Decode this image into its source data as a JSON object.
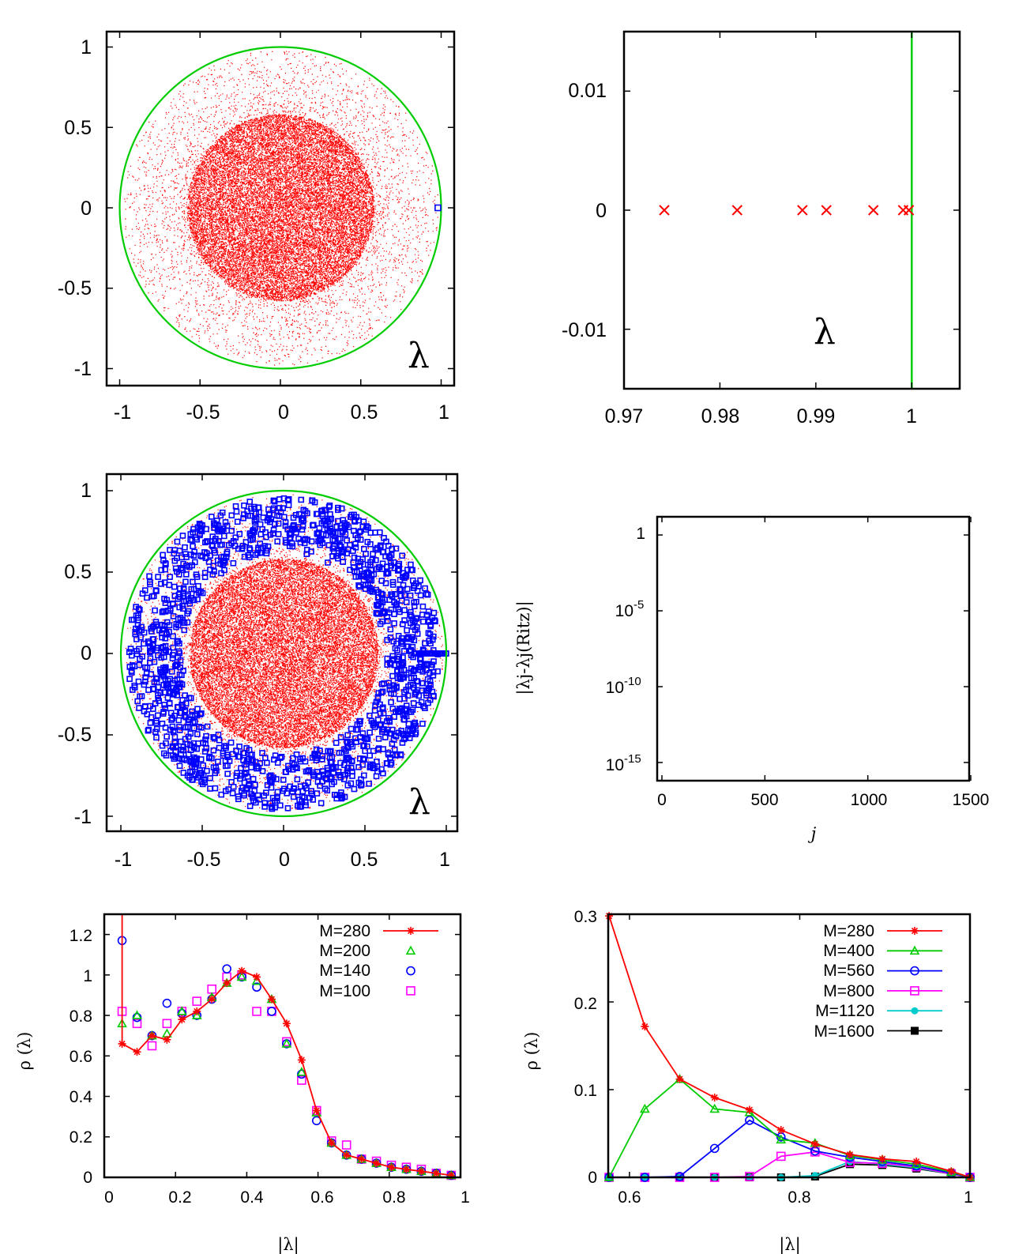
{
  "chart_data": [
    {
      "id": "p1",
      "type": "scatter",
      "annotation": "λ",
      "xlim": [
        -1.1,
        1.1
      ],
      "ylim": [
        -1.1,
        1.1
      ],
      "xticks": [
        "-1",
        "-0.5",
        "0",
        "0.5",
        "1"
      ],
      "yticks": [
        "1",
        "0.5",
        "0",
        "-0.5",
        "-1"
      ],
      "unit_circle_color": "#00cc00",
      "points_color": "#ff0000",
      "highlight_point": {
        "x": 0.97,
        "y": 0.0,
        "color": "#0000ff"
      }
    },
    {
      "id": "p2",
      "type": "scatter",
      "annotation": "λ",
      "xlim": [
        0.97,
        1.005
      ],
      "ylim": [
        -0.015,
        0.015
      ],
      "xticks": [
        "0.97",
        "0.98",
        "0.99",
        "1"
      ],
      "yticks": [
        "0.01",
        "0",
        "-0.01"
      ],
      "x": [
        0.9742,
        0.9818,
        0.9886,
        0.9911,
        0.996,
        0.9991,
        0.9997
      ],
      "y": [
        0,
        0,
        0,
        0,
        0,
        0,
        0
      ],
      "marker": "x",
      "color": "#ff0000",
      "vline": {
        "x": 1.0,
        "color": "#00cc00"
      }
    },
    {
      "id": "p3",
      "type": "scatter",
      "annotation": "λ",
      "xlim": [
        -1.1,
        1.1
      ],
      "ylim": [
        -1.1,
        1.1
      ],
      "xticks": [
        "-1",
        "-0.5",
        "0",
        "0.5",
        "1"
      ],
      "yticks": [
        "1",
        "0.5",
        "0",
        "-0.5",
        "-1"
      ],
      "unit_circle_color": "#00cc00",
      "points_color": "#ff0000",
      "ritz_color": "#0000ff"
    },
    {
      "id": "p4",
      "type": "scatter",
      "xlabel": "j",
      "ylabel": "|λj-λj(Ritz)|",
      "xlim": [
        0,
        1500
      ],
      "ylog": true,
      "ylim_exp": [
        -16.2,
        1.2
      ],
      "xticks": [
        "0",
        "500",
        "1000",
        "1500"
      ],
      "yticks": [
        {
          "base": "1",
          "exp": ""
        },
        {
          "base": "10",
          "exp": "-5"
        },
        {
          "base": "10",
          "exp": "-10"
        },
        {
          "base": "10",
          "exp": "-15"
        }
      ],
      "marker": "+",
      "color": "#ff0000"
    },
    {
      "id": "p5",
      "type": "line",
      "xlabel": "|λ|",
      "ylabel": "ρ (λ)",
      "xlim": [
        0,
        1
      ],
      "ylim": [
        0,
        1.3
      ],
      "xticks": [
        "0",
        "0.2",
        "0.4",
        "0.6",
        "0.8",
        "1"
      ],
      "yticks": [
        "0",
        "0.2",
        "0.4",
        "0.6",
        "0.8",
        "1",
        "1.2"
      ],
      "legend_position": "top-right",
      "x": [
        0.05,
        0.092,
        0.134,
        0.176,
        0.218,
        0.26,
        0.302,
        0.344,
        0.386,
        0.428,
        0.47,
        0.512,
        0.554,
        0.596,
        0.638,
        0.68,
        0.722,
        0.764,
        0.806,
        0.848,
        0.89,
        0.932,
        0.974
      ],
      "series": [
        {
          "name": "M=280",
          "color": "#ff0000",
          "marker": "star",
          "line": true,
          "values": [
            0.66,
            0.62,
            0.7,
            0.68,
            0.78,
            0.82,
            0.88,
            0.96,
            1.02,
            0.99,
            0.88,
            0.76,
            0.58,
            0.33,
            0.17,
            0.11,
            0.09,
            0.07,
            0.05,
            0.04,
            0.03,
            0.02,
            0.01
          ]
        },
        {
          "name": "M=200",
          "color": "#00cc00",
          "marker": "triangle",
          "line": false,
          "values": [
            0.76,
            0.8,
            0.7,
            0.71,
            0.82,
            0.8,
            0.89,
            0.96,
            0.99,
            0.97,
            0.88,
            0.66,
            0.52,
            0.32,
            0.17,
            0.11,
            0.09,
            0.07,
            0.05,
            0.04,
            0.03,
            0.02,
            0.01
          ]
        },
        {
          "name": "M=140",
          "color": "#0000ff",
          "marker": "circle",
          "line": false,
          "values": [
            1.17,
            0.79,
            0.7,
            0.86,
            0.81,
            0.8,
            0.88,
            1.03,
            0.99,
            0.94,
            0.82,
            0.66,
            0.51,
            0.28,
            0.17,
            0.11,
            0.09,
            0.07,
            0.05,
            0.04,
            0.03,
            0.02,
            0.01
          ]
        },
        {
          "name": "M=100",
          "color": "#ff00ff",
          "marker": "square",
          "line": false,
          "values": [
            0.82,
            0.76,
            0.65,
            0.76,
            0.82,
            0.87,
            0.93,
            0.99,
            1.0,
            0.82,
            0.82,
            0.67,
            0.48,
            0.33,
            0.18,
            0.16,
            0.09,
            0.08,
            0.06,
            0.05,
            0.04,
            0.02,
            0.01
          ]
        }
      ]
    },
    {
      "id": "p6",
      "type": "line",
      "xlabel": "|λ|",
      "ylabel": "ρ (λ)",
      "xlim": [
        0.575,
        1.0
      ],
      "ylim": [
        0,
        0.3
      ],
      "xticks": [
        "0.6",
        "0.8",
        "1"
      ],
      "yticks": [
        "0",
        "0.1",
        "0.2",
        "0.3"
      ],
      "legend_position": "top-right",
      "x": [
        0.576,
        0.618,
        0.659,
        0.7,
        0.741,
        0.778,
        0.818,
        0.859,
        0.897,
        0.937,
        0.978,
        1.0
      ],
      "series": [
        {
          "name": "M=280",
          "color": "#ff0000",
          "marker": "star",
          "values": [
            0.298,
            0.172,
            0.112,
            0.091,
            0.077,
            0.054,
            0.038,
            0.026,
            0.021,
            0.018,
            0.007,
            0.0
          ]
        },
        {
          "name": "M=400",
          "color": "#00cc00",
          "marker": "triangle",
          "values": [
            0.0,
            0.078,
            0.112,
            0.078,
            0.074,
            0.043,
            0.039,
            0.025,
            0.02,
            0.015,
            0.006,
            0.0
          ]
        },
        {
          "name": "M=560",
          "color": "#0000ff",
          "marker": "circle",
          "values": [
            0.0,
            0.0,
            0.001,
            0.033,
            0.065,
            0.046,
            0.03,
            0.023,
            0.018,
            0.013,
            0.005,
            0.0
          ]
        },
        {
          "name": "M=800",
          "color": "#ff00ff",
          "marker": "square",
          "values": [
            0.0,
            0.0,
            0.0,
            0.0,
            0.001,
            0.024,
            0.029,
            0.017,
            0.016,
            0.012,
            0.004,
            0.0
          ]
        },
        {
          "name": "M=1120",
          "color": "#00cccc",
          "marker": "filled-circle",
          "values": [
            0.0,
            0.0,
            0.0,
            0.0,
            0.0,
            0.0,
            0.002,
            0.018,
            0.015,
            0.011,
            0.004,
            0.0
          ]
        },
        {
          "name": "M=1600",
          "color": "#000000",
          "marker": "filled-square",
          "values": [
            0.0,
            0.0,
            0.0,
            0.0,
            0.0,
            0.0,
            0.001,
            0.015,
            0.014,
            0.01,
            0.004,
            0.0
          ]
        }
      ]
    }
  ]
}
